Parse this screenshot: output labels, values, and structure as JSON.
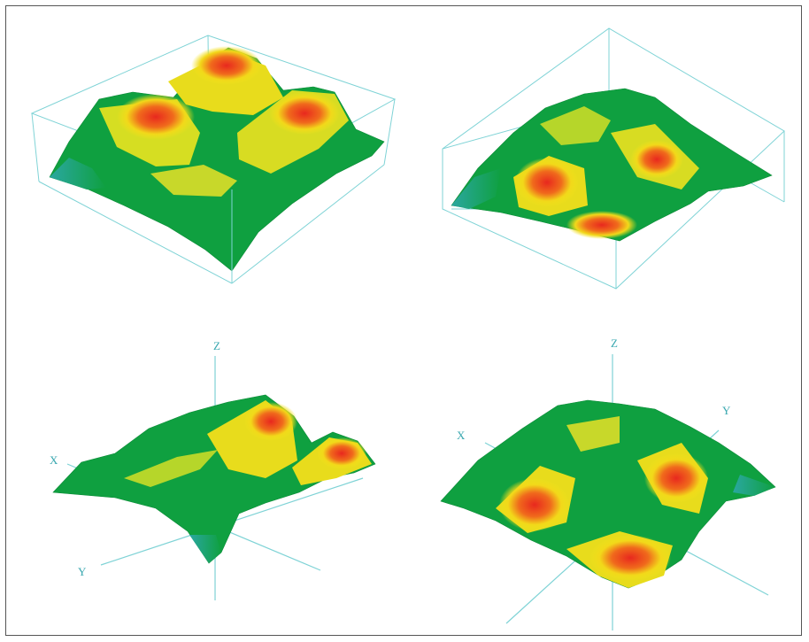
{
  "panels": [
    {
      "id": "top-left",
      "view": "bounding-box"
    },
    {
      "id": "top-right",
      "view": "bounding-box"
    },
    {
      "id": "bottom-left",
      "view": "axes",
      "axis_labels": {
        "z": "Z",
        "x": "X",
        "y": "Y"
      }
    },
    {
      "id": "bottom-right",
      "view": "axes",
      "axis_labels": {
        "z": "Z",
        "x": "X",
        "y": "Y"
      }
    }
  ],
  "colors": {
    "line": "#7fd3d6",
    "green": "#0fa040",
    "yellow": "#f2e21a",
    "orange": "#f08a1c",
    "red": "#e8281e",
    "teal": "#2aa7a0"
  }
}
